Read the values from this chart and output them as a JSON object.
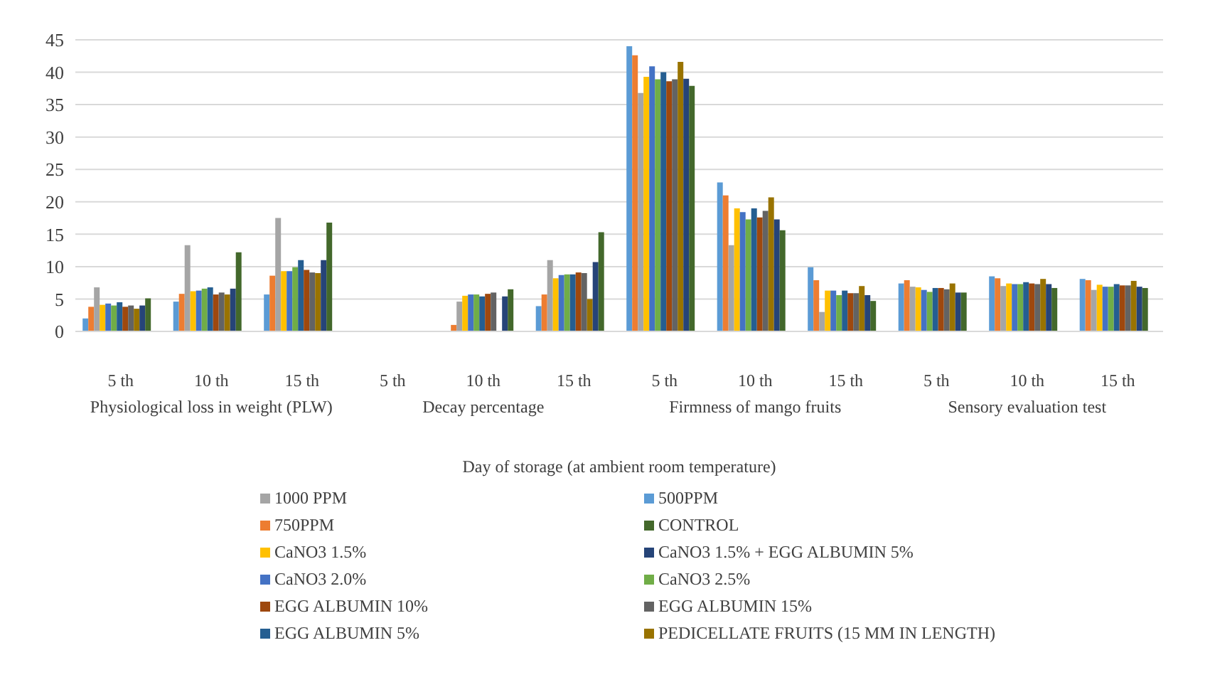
{
  "chart_data": {
    "type": "bar",
    "xlabel": "Day of storage (at ambient room temperature)",
    "categories": [
      "5 th",
      "10 th",
      "15 th",
      "5 th",
      "10 th",
      "15 th",
      "5 th",
      "10 th",
      "15 th",
      "5 th",
      "10 th",
      "15 th"
    ],
    "annotations": [
      "Physiological loss in weight (PLW)",
      "Decay percentage",
      "Firmness of mango fruits",
      "Sensory evaluation test"
    ],
    "ylim": [
      0,
      45
    ],
    "yticks": [
      0,
      5,
      10,
      15,
      20,
      25,
      30,
      35,
      40,
      45
    ],
    "grid": "y",
    "legend": "bottom",
    "series": [
      {
        "name": "500PPM",
        "color": "#5b9bd5",
        "values": [
          2.0,
          4.6,
          5.7,
          0,
          0,
          3.9,
          44.0,
          23.0,
          9.9,
          7.4,
          8.5,
          8.1
        ]
      },
      {
        "name": "750PPM",
        "color": "#ed7d31",
        "values": [
          3.8,
          5.8,
          8.6,
          0,
          1.0,
          5.7,
          42.6,
          21.0,
          7.9,
          7.9,
          8.2,
          7.9
        ]
      },
      {
        "name": "1000 PPM",
        "color": "#a5a5a5",
        "values": [
          6.8,
          13.3,
          17.5,
          0,
          4.6,
          11.0,
          36.8,
          13.3,
          3.0,
          6.9,
          7.0,
          6.4
        ]
      },
      {
        "name": "CaNO3 1.5%",
        "color": "#ffc000",
        "values": [
          4.1,
          6.2,
          9.3,
          0,
          5.5,
          8.2,
          39.3,
          19.0,
          6.3,
          6.8,
          7.4,
          7.2
        ]
      },
      {
        "name": "CaNO3 2.0%",
        "color": "#4472c4",
        "values": [
          4.3,
          6.3,
          9.3,
          0,
          5.7,
          8.7,
          40.9,
          18.4,
          6.3,
          6.4,
          7.3,
          6.9
        ]
      },
      {
        "name": "CaNO3 2.5%",
        "color": "#70ad47",
        "values": [
          4.0,
          6.6,
          9.9,
          0,
          5.7,
          8.8,
          38.9,
          17.3,
          5.6,
          6.1,
          7.3,
          6.9
        ]
      },
      {
        "name": "EGG ALBUMIN 5%",
        "color": "#255e91",
        "values": [
          4.5,
          6.8,
          11.0,
          0,
          5.4,
          8.8,
          40.0,
          19.0,
          6.3,
          6.7,
          7.6,
          7.3
        ]
      },
      {
        "name": "EGG ALBUMIN 10%",
        "color": "#9e480e",
        "values": [
          3.8,
          5.7,
          9.5,
          0,
          5.8,
          9.1,
          38.6,
          17.6,
          5.9,
          6.7,
          7.4,
          7.1
        ]
      },
      {
        "name": "EGG ALBUMIN 15%",
        "color": "#636363",
        "values": [
          4.0,
          6.0,
          9.1,
          0,
          6.0,
          9.0,
          38.9,
          18.6,
          5.9,
          6.5,
          7.3,
          7.1
        ]
      },
      {
        "name": "PEDICELLATE FRUITS (15 MM IN LENGTH)",
        "color": "#997300",
        "values": [
          3.5,
          5.7,
          9.0,
          0,
          0,
          5.0,
          41.6,
          20.7,
          7.0,
          7.4,
          8.1,
          7.8
        ]
      },
      {
        "name": "CaNO3 1.5% + EGG ALBUMIN 5%",
        "color": "#264478",
        "values": [
          4.0,
          6.6,
          11.0,
          0,
          5.4,
          10.7,
          39.0,
          17.3,
          5.6,
          6.0,
          7.3,
          6.9
        ]
      },
      {
        "name": "CONTROL",
        "color": "#43682b",
        "values": [
          5.1,
          12.2,
          16.8,
          0,
          6.5,
          15.3,
          37.9,
          15.6,
          4.7,
          6.0,
          6.7,
          6.7
        ]
      }
    ]
  }
}
